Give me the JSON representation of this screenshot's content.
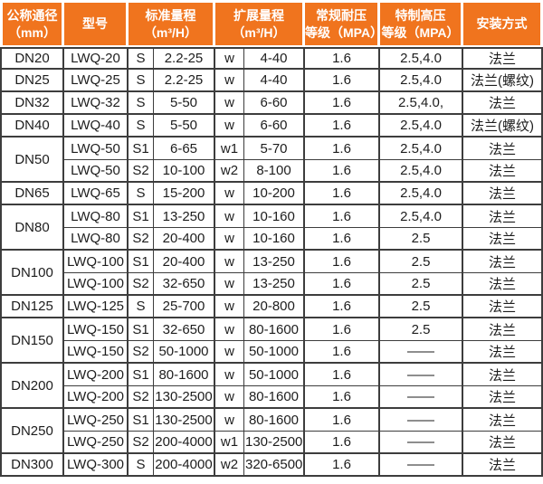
{
  "table": {
    "title_semantic": "LWQ涡轮流量计规格参数表",
    "colors": {
      "header_bg": "#F0741E",
      "header_text": "#FFFFFF",
      "border": "#3D3D3D",
      "body_text": "#1D1D1D"
    },
    "headers": [
      {
        "label": "公称通径\n（mm）"
      },
      {
        "label": "型号"
      },
      {
        "label": "标准量程\n（m³/H）"
      },
      {
        "label": "扩展量程\n（m³/H）"
      },
      {
        "label": "常规耐压\n等级（MPA）"
      },
      {
        "label": "特制高压\n等级（MPA）"
      },
      {
        "label": "安装方式"
      }
    ],
    "groups": [
      {
        "dn": "DN20",
        "rows": [
          {
            "model": "LWQ-20",
            "std_code": "S",
            "std_range": "2.2-25",
            "ext_code": "w",
            "ext_range": "4-40",
            "regular_mpa": "1.6",
            "special_mpa": "2.5,4.0",
            "install": "法兰"
          }
        ]
      },
      {
        "dn": "DN25",
        "rows": [
          {
            "model": "LWQ-25",
            "std_code": "S",
            "std_range": "2.2-25",
            "ext_code": "w",
            "ext_range": "4-40",
            "regular_mpa": "1.6",
            "special_mpa": "2.5,4.0",
            "install": "法兰(螺纹)"
          }
        ]
      },
      {
        "dn": "DN32",
        "rows": [
          {
            "model": "LWQ-32",
            "std_code": "S",
            "std_range": "5-50",
            "ext_code": "w",
            "ext_range": "6-60",
            "regular_mpa": "1.6",
            "special_mpa": "2.5,4.0,",
            "install": "法兰"
          }
        ]
      },
      {
        "dn": "DN40",
        "rows": [
          {
            "model": "LWQ-40",
            "std_code": "S",
            "std_range": "5-50",
            "ext_code": "w",
            "ext_range": "6-60",
            "regular_mpa": "1.6",
            "special_mpa": "2.5,4.0",
            "install": "法兰(螺纹)"
          }
        ]
      },
      {
        "dn": "DN50",
        "rows": [
          {
            "model": "LWQ-50",
            "std_code": "S1",
            "std_range": "6-65",
            "ext_code": "w1",
            "ext_range": "5-70",
            "regular_mpa": "1.6",
            "special_mpa": "2.5,4.0",
            "install": "法兰"
          },
          {
            "model": "LWQ-50",
            "std_code": "S2",
            "std_range": "10-100",
            "ext_code": "w2",
            "ext_range": "8-100",
            "regular_mpa": "1.6",
            "special_mpa": "2.5,4.0",
            "install": "法兰"
          }
        ]
      },
      {
        "dn": "DN65",
        "rows": [
          {
            "model": "LWQ-65",
            "std_code": "S",
            "std_range": "15-200",
            "ext_code": "w",
            "ext_range": "10-200",
            "regular_mpa": "1.6",
            "special_mpa": "2.5,4.0",
            "install": "法兰"
          }
        ]
      },
      {
        "dn": "DN80",
        "rows": [
          {
            "model": "LWQ-80",
            "std_code": "S1",
            "std_range": "13-250",
            "ext_code": "w",
            "ext_range": "10-160",
            "regular_mpa": "1.6",
            "special_mpa": "2.5,4.0",
            "install": "法兰"
          },
          {
            "model": "LWQ-80",
            "std_code": "S2",
            "std_range": "20-400",
            "ext_code": "w",
            "ext_range": "10-160",
            "regular_mpa": "1.6",
            "special_mpa": "2.5",
            "install": "法兰"
          }
        ]
      },
      {
        "dn": "DN100",
        "rows": [
          {
            "model": "LWQ-100",
            "std_code": "S1",
            "std_range": "20-400",
            "ext_code": "w",
            "ext_range": "13-250",
            "regular_mpa": "1.6",
            "special_mpa": "2.5",
            "install": "法兰"
          },
          {
            "model": "LWQ-100",
            "std_code": "S2",
            "std_range": "32-650",
            "ext_code": "w",
            "ext_range": "13-250",
            "regular_mpa": "1.6",
            "special_mpa": "2.5",
            "install": "法兰"
          }
        ]
      },
      {
        "dn": "DN125",
        "rows": [
          {
            "model": "LWQ-125",
            "std_code": "S",
            "std_range": "25-700",
            "ext_code": "w",
            "ext_range": "20-800",
            "regular_mpa": "1.6",
            "special_mpa": "2.5",
            "install": "法兰"
          }
        ]
      },
      {
        "dn": "DN150",
        "rows": [
          {
            "model": "LWQ-150",
            "std_code": "S1",
            "std_range": "32-650",
            "ext_code": "w",
            "ext_range": "80-1600",
            "regular_mpa": "1.6",
            "special_mpa": "2.5",
            "install": "法兰"
          },
          {
            "model": "LWQ-150",
            "std_code": "S2",
            "std_range": "50-1000",
            "ext_code": "w",
            "ext_range": "50-1000",
            "regular_mpa": "1.6",
            "special_mpa": "——",
            "install": "法兰"
          }
        ]
      },
      {
        "dn": "DN200",
        "rows": [
          {
            "model": "LWQ-200",
            "std_code": "S1",
            "std_range": "80-1600",
            "ext_code": "w",
            "ext_range": "50-1000",
            "regular_mpa": "1.6",
            "special_mpa": "——",
            "install": "法兰"
          },
          {
            "model": "LWQ-200",
            "std_code": "S2",
            "std_range": "130-2500",
            "ext_code": "w",
            "ext_range": "80-1600",
            "regular_mpa": "1.6",
            "special_mpa": "——",
            "install": "法兰"
          }
        ]
      },
      {
        "dn": "DN250",
        "rows": [
          {
            "model": "LWQ-250",
            "std_code": "S1",
            "std_range": "130-2500",
            "ext_code": "w",
            "ext_range": "80-1600",
            "regular_mpa": "1.6",
            "special_mpa": "——",
            "install": "法兰"
          },
          {
            "model": "LWQ-250",
            "std_code": "S2",
            "std_range": "200-4000",
            "ext_code": "w1",
            "ext_range": "130-2500",
            "regular_mpa": "1.6",
            "special_mpa": "——",
            "install": "法兰"
          }
        ]
      },
      {
        "dn": "DN300",
        "rows": [
          {
            "model": "LWQ-300",
            "std_code": "S",
            "std_range": "200-4000",
            "ext_code": "w2",
            "ext_range": "320-6500",
            "regular_mpa": "1.6",
            "special_mpa": "——",
            "install": "法兰"
          }
        ]
      }
    ]
  }
}
